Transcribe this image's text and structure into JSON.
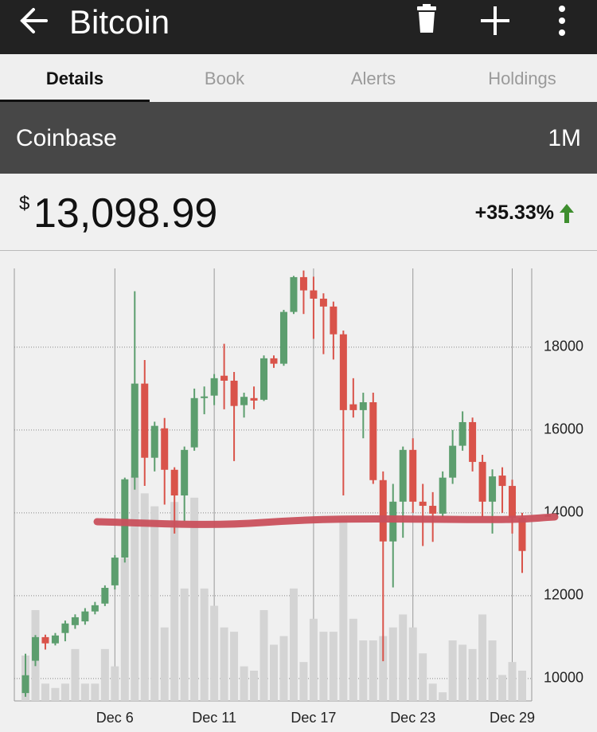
{
  "header": {
    "title": "Bitcoin"
  },
  "tabs": [
    "Details",
    "Book",
    "Alerts",
    "Holdings"
  ],
  "exchange": "Coinbase",
  "range": "1M",
  "price": {
    "currency": "$",
    "value": "13,098.99"
  },
  "change": "+35.33%",
  "chart_data": {
    "type": "candlestick",
    "categories": [
      null,
      null,
      null,
      null,
      null,
      null,
      null,
      null,
      null,
      "Dec 6",
      null,
      null,
      null,
      null,
      null,
      null,
      null,
      null,
      null,
      "Dec 11",
      null,
      null,
      null,
      null,
      null,
      null,
      null,
      null,
      null,
      "Dec 17",
      null,
      null,
      null,
      null,
      null,
      null,
      null,
      null,
      null,
      "Dec 23",
      null,
      null,
      null,
      null,
      null,
      null,
      null,
      null,
      null,
      "Dec 29",
      null
    ],
    "open": [
      9650,
      10430,
      11000,
      10850,
      11100,
      11290,
      11380,
      11620,
      11810,
      12250,
      12920,
      14850,
      17120,
      15330,
      16040,
      15040,
      14420,
      15580,
      16770,
      16830,
      17310,
      17190,
      16600,
      16770,
      16730,
      17730,
      17600,
      18850,
      19690,
      19370,
      19170,
      18980,
      18310,
      16620,
      16480,
      16670,
      14790,
      13310,
      14270,
      15520,
      14270,
      14170,
      13980,
      14850,
      15620,
      16190,
      15230,
      14270,
      14900,
      14650,
      13880
    ],
    "high": [
      10600,
      11050,
      11060,
      11100,
      11400,
      11550,
      11700,
      11850,
      12250,
      12980,
      14850,
      19350,
      17690,
      16200,
      16290,
      15100,
      15600,
      17000,
      17050,
      17350,
      18080,
      17400,
      16900,
      17050,
      17800,
      17800,
      18900,
      19720,
      19850,
      19700,
      19300,
      19100,
      18400,
      17250,
      16900,
      16900,
      15000,
      14700,
      15600,
      15800,
      14700,
      14500,
      15000,
      16000,
      16450,
      16300,
      15400,
      15050,
      15100,
      14800,
      14000
    ],
    "low": [
      9560,
      10300,
      10700,
      10800,
      10900,
      11200,
      11300,
      11550,
      11750,
      12150,
      12800,
      14560,
      14650,
      15000,
      14200,
      13500,
      13800,
      15500,
      16380,
      16600,
      16500,
      15250,
      16300,
      16500,
      16700,
      17500,
      17550,
      18800,
      18800,
      18200,
      17830,
      17700,
      14420,
      16300,
      15800,
      14700,
      10420,
      12200,
      13400,
      14000,
      13200,
      13300,
      13900,
      14700,
      15500,
      15000,
      13900,
      13500,
      14000,
      13500,
      12550
    ],
    "close": [
      10080,
      11000,
      10850,
      11040,
      11330,
      11480,
      11620,
      11770,
      12190,
      12920,
      14810,
      17120,
      15330,
      16100,
      15040,
      14420,
      15520,
      16770,
      16810,
      17250,
      17190,
      16580,
      16800,
      16710,
      17730,
      17600,
      18850,
      19690,
      19370,
      19170,
      18980,
      18310,
      16480,
      16480,
      16670,
      14790,
      13310,
      14270,
      15520,
      14270,
      14170,
      13980,
      14850,
      15620,
      16190,
      15230,
      14270,
      14880,
      14650,
      13880,
      13080
    ],
    "volume": [
      10.5,
      21,
      4,
      3,
      4,
      12,
      4,
      4,
      12,
      8,
      33,
      52,
      48,
      45,
      17,
      46,
      26,
      47,
      26,
      22,
      17,
      16,
      8,
      7,
      21,
      13,
      15,
      26,
      9,
      19,
      16,
      16,
      42,
      19,
      14,
      14,
      15,
      17,
      20,
      17,
      11,
      4,
      2,
      14,
      13,
      12,
      20,
      14,
      6,
      9,
      7
    ],
    "volume_lim": [
      0,
      100
    ],
    "ylim": [
      9460,
      19900
    ],
    "yticks": [
      10000,
      12000,
      14000,
      16000,
      18000
    ],
    "up_color": "#5c9e6e",
    "down_color": "#d9534a",
    "volume_color": "#d4d4d4",
    "grid": true
  }
}
